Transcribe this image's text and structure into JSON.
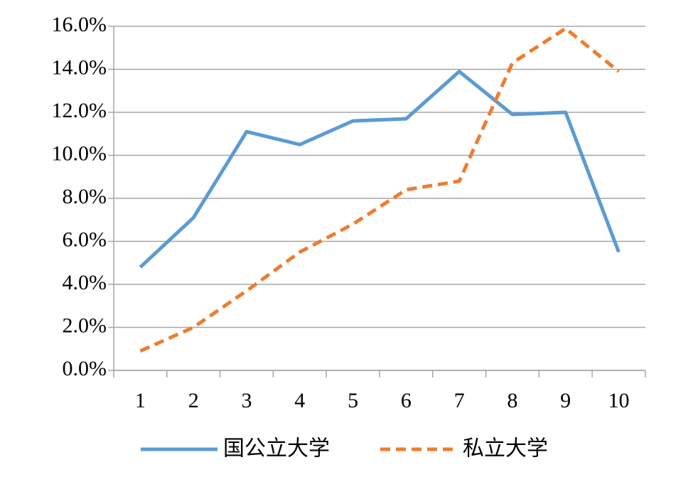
{
  "chart_data": {
    "type": "line",
    "categories": [
      "1",
      "2",
      "3",
      "4",
      "5",
      "6",
      "7",
      "8",
      "9",
      "10"
    ],
    "series": [
      {
        "name": "国公立大学",
        "color": "#5b9bd5",
        "line_style": "solid",
        "values": [
          4.8,
          7.1,
          11.1,
          10.5,
          11.6,
          11.7,
          13.9,
          11.9,
          12.0,
          5.5
        ]
      },
      {
        "name": "私立大学",
        "color": "#ed7d31",
        "line_style": "dashed",
        "values": [
          0.9,
          2.0,
          3.7,
          5.5,
          6.8,
          8.4,
          8.8,
          14.3,
          15.9,
          13.9
        ]
      }
    ],
    "ylim": [
      0,
      16
    ],
    "yticks": [
      {
        "value": 0,
        "label": "0.0%"
      },
      {
        "value": 2,
        "label": "2.0%"
      },
      {
        "value": 4,
        "label": "4.0%"
      },
      {
        "value": 6,
        "label": "6.0%"
      },
      {
        "value": 8,
        "label": "8.0%"
      },
      {
        "value": 10,
        "label": "10.0%"
      },
      {
        "value": 12,
        "label": "12.0%"
      },
      {
        "value": 14,
        "label": "14.0%"
      },
      {
        "value": 16,
        "label": "16.0%"
      }
    ],
    "grid": true,
    "legend": "bottom"
  }
}
